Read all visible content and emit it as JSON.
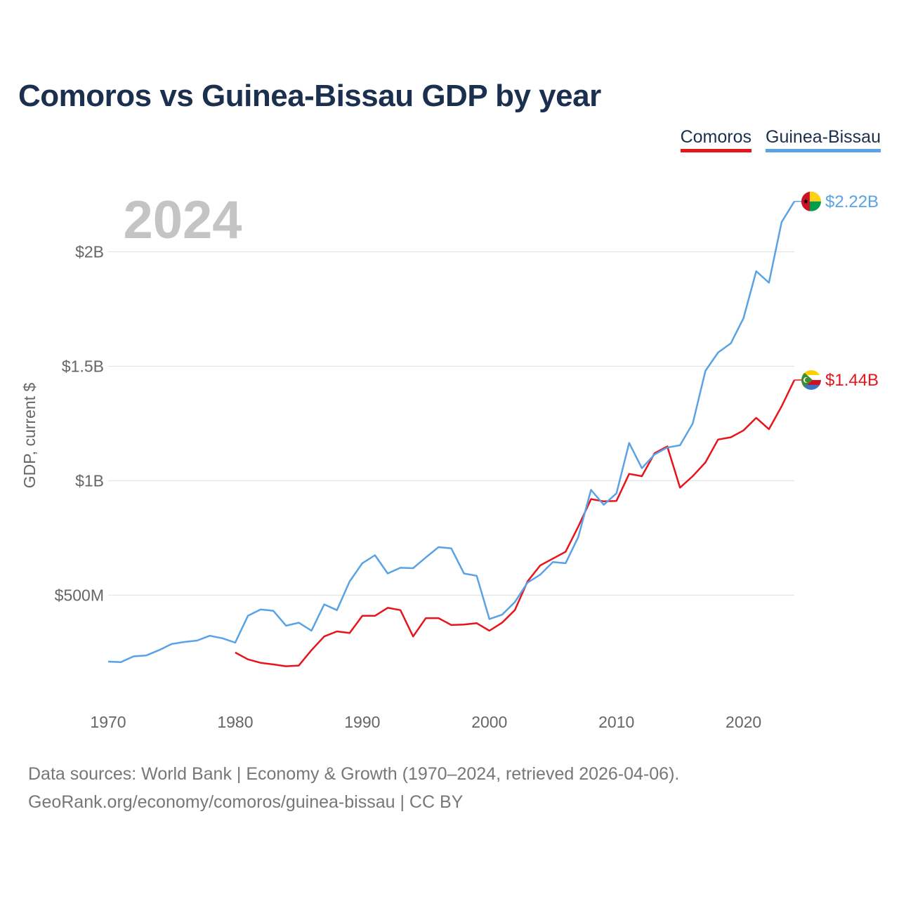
{
  "title": "Comoros vs Guinea-Bissau GDP by year",
  "legend": {
    "comoros": "Comoros",
    "guinea_bissau": "Guinea-Bissau"
  },
  "year_label": "2024",
  "source_line1": "Data sources: World Bank | Economy & Growth (1970–2024, retrieved 2026-04-06).",
  "source_line2": "GeoRank.org/economy/comoros/guinea-bissau | CC BY",
  "colors": {
    "comoros": "#e8141c",
    "guinea_bissau": "#5aa2e6",
    "title": "#1b2f4e",
    "grid": "#e4e4e4",
    "axis_text": "#666666",
    "year": "#c4c4c4"
  },
  "chart_data": {
    "type": "line",
    "title": "Comoros vs Guinea-Bissau GDP by year",
    "xlabel": "",
    "ylabel": "GDP, current $",
    "xlim": [
      1970,
      2024
    ],
    "ylim": [
      0,
      2.25
    ],
    "y_unit": "billion USD",
    "x_ticks": [
      1970,
      1980,
      1990,
      2000,
      2010,
      2020
    ],
    "x_tick_labels": [
      "1970",
      "1980",
      "1990",
      "2000",
      "2010",
      "2020"
    ],
    "y_ticks": [
      0.5,
      1.0,
      1.5,
      2.0
    ],
    "y_tick_labels": [
      "$500M",
      "$1B",
      "$1.5B",
      "$2B"
    ],
    "grid": true,
    "legend_position": "top-right",
    "series": [
      {
        "name": "Comoros",
        "color": "#e8141c",
        "end_label": "$1.44B",
        "x": [
          1980,
          1981,
          1982,
          1983,
          1984,
          1985,
          1986,
          1987,
          1988,
          1989,
          1990,
          1991,
          1992,
          1993,
          1994,
          1995,
          1996,
          1997,
          1998,
          1999,
          2000,
          2001,
          2002,
          2003,
          2004,
          2005,
          2006,
          2007,
          2008,
          2009,
          2010,
          2011,
          2012,
          2013,
          2014,
          2015,
          2016,
          2017,
          2018,
          2019,
          2020,
          2021,
          2022,
          2023,
          2024
        ],
        "values": [
          0.25,
          0.22,
          0.205,
          0.198,
          0.19,
          0.193,
          0.26,
          0.32,
          0.342,
          0.335,
          0.41,
          0.41,
          0.445,
          0.435,
          0.32,
          0.4,
          0.4,
          0.37,
          0.372,
          0.378,
          0.345,
          0.38,
          0.435,
          0.56,
          0.63,
          0.66,
          0.69,
          0.8,
          0.92,
          0.91,
          0.912,
          1.03,
          1.02,
          1.12,
          1.15,
          0.97,
          1.02,
          1.08,
          1.18,
          1.19,
          1.22,
          1.275,
          1.225,
          1.325,
          1.44
        ]
      },
      {
        "name": "Guinea-Bissau",
        "color": "#5aa2e6",
        "end_label": "$2.22B",
        "x": [
          1970,
          1971,
          1972,
          1973,
          1974,
          1975,
          1976,
          1977,
          1978,
          1979,
          1980,
          1981,
          1982,
          1983,
          1984,
          1985,
          1986,
          1987,
          1988,
          1989,
          1990,
          1991,
          1992,
          1993,
          1994,
          1995,
          1996,
          1997,
          1998,
          1999,
          2000,
          2001,
          2002,
          2003,
          2004,
          2005,
          2006,
          2007,
          2008,
          2009,
          2010,
          2011,
          2012,
          2013,
          2014,
          2015,
          2016,
          2017,
          2018,
          2019,
          2020,
          2021,
          2022,
          2023,
          2024
        ],
        "values": [
          0.21,
          0.208,
          0.233,
          0.237,
          0.26,
          0.287,
          0.296,
          0.302,
          0.323,
          0.312,
          0.293,
          0.41,
          0.438,
          0.432,
          0.367,
          0.38,
          0.345,
          0.46,
          0.435,
          0.56,
          0.64,
          0.675,
          0.595,
          0.62,
          0.618,
          0.665,
          0.71,
          0.705,
          0.595,
          0.585,
          0.396,
          0.415,
          0.47,
          0.555,
          0.59,
          0.645,
          0.64,
          0.755,
          0.96,
          0.895,
          0.945,
          1.165,
          1.055,
          1.115,
          1.145,
          1.155,
          1.25,
          1.48,
          1.56,
          1.6,
          1.71,
          1.915,
          1.865,
          2.13,
          2.22
        ]
      }
    ]
  }
}
